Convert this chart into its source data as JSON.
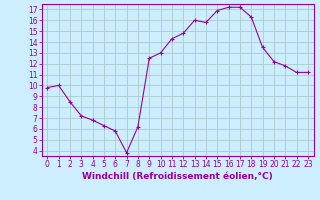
{
  "x": [
    0,
    1,
    2,
    3,
    4,
    5,
    6,
    7,
    8,
    9,
    10,
    11,
    12,
    13,
    14,
    15,
    16,
    17,
    18,
    19,
    20,
    21,
    22,
    23
  ],
  "y": [
    9.8,
    10.0,
    8.5,
    7.2,
    6.8,
    6.3,
    5.8,
    3.8,
    6.2,
    12.5,
    13.0,
    14.3,
    14.8,
    16.0,
    15.8,
    16.9,
    17.2,
    17.2,
    16.3,
    13.5,
    12.2,
    11.8,
    11.2,
    11.2
  ],
  "line_color": "#990099",
  "marker": "+",
  "marker_size": 3,
  "bg_color": "#cceeff",
  "grid_color": "#aacccc",
  "xlabel": "Windchill (Refroidissement éolien,°C)",
  "xlabel_color": "#990099",
  "ylabel_ticks": [
    4,
    5,
    6,
    7,
    8,
    9,
    10,
    11,
    12,
    13,
    14,
    15,
    16,
    17
  ],
  "xlim": [
    -0.5,
    23.5
  ],
  "ylim": [
    3.5,
    17.5
  ],
  "tick_color": "#990099",
  "axis_color": "#990099",
  "tick_fontsize": 5.5,
  "xlabel_fontsize": 6.5
}
